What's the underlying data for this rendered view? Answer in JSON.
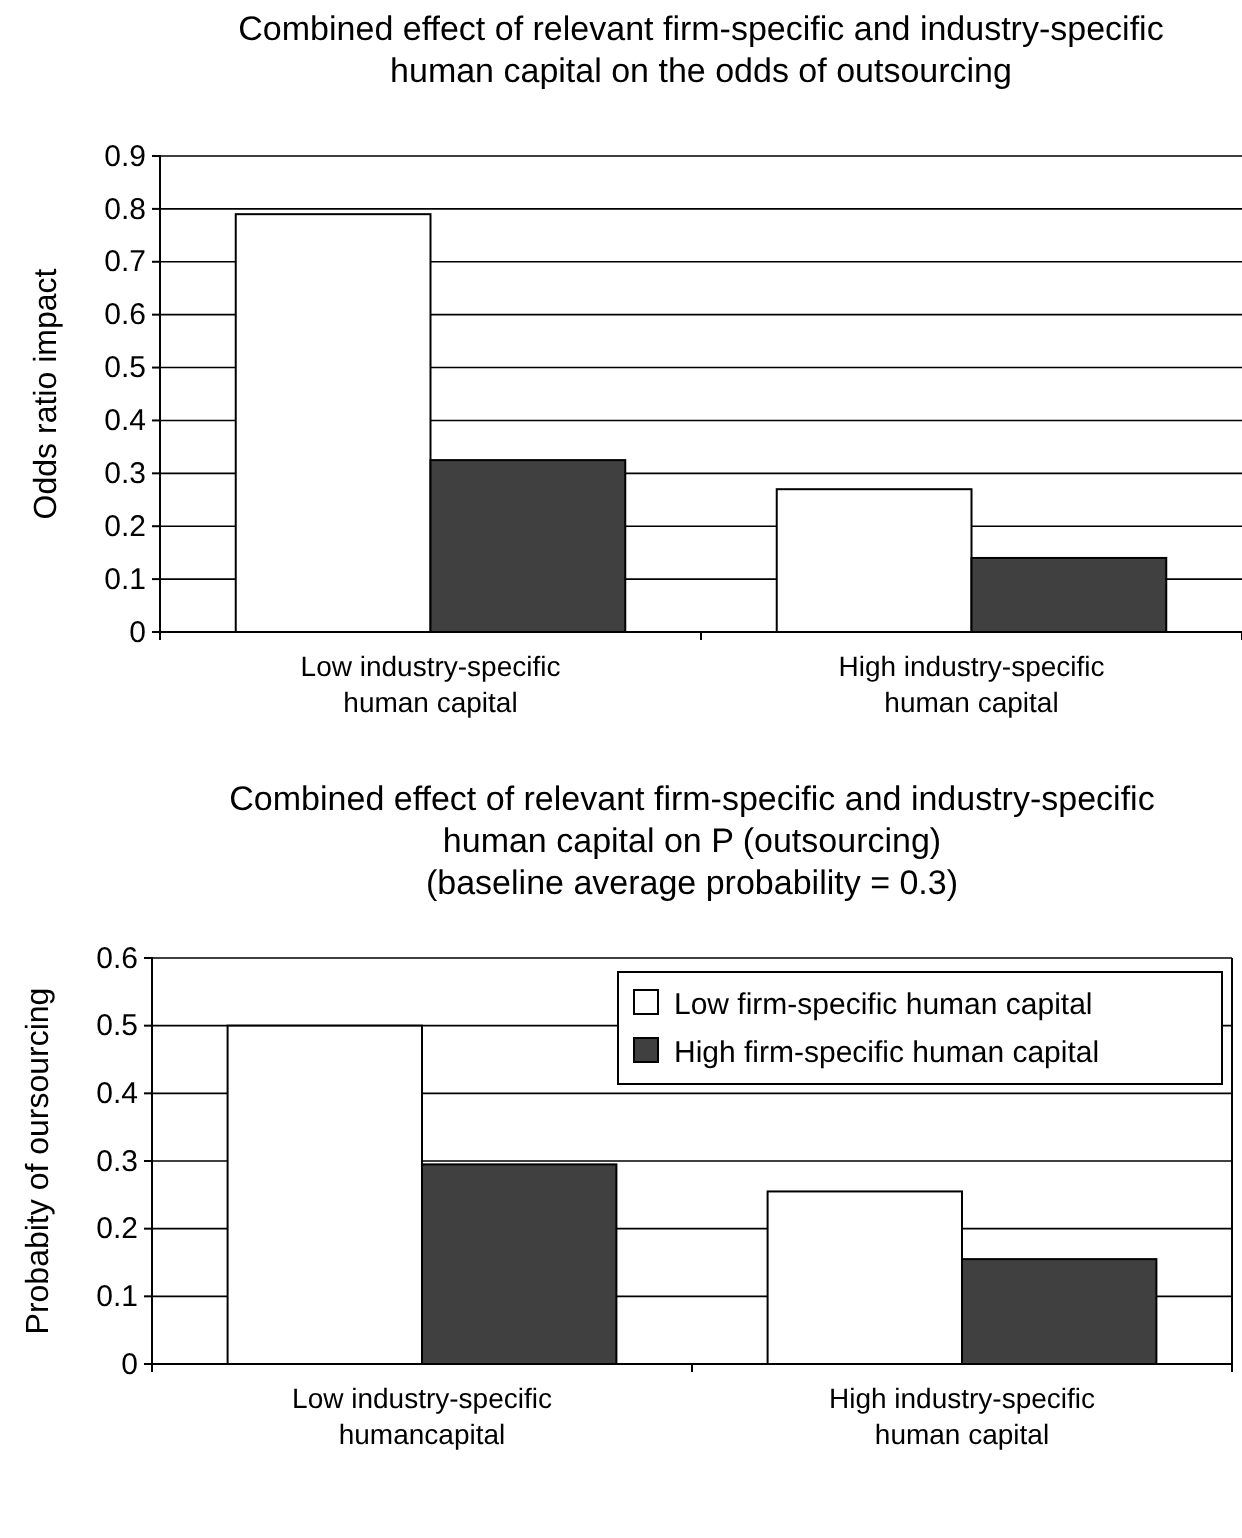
{
  "chart_data": [
    {
      "type": "bar",
      "title": "Combined effect of relevant firm-specific and industry-specific human capital on the odds of outsourcing",
      "ylabel": "Odds ratio impact",
      "categories": [
        "Low industry-specific human capital",
        "High industry-specific human capital"
      ],
      "series": [
        {
          "color": "#ffffff",
          "values": [
            0.79,
            0.27
          ]
        },
        {
          "color": "#404040",
          "values": [
            0.325,
            0.14
          ]
        }
      ],
      "ylim": [
        0,
        0.9
      ],
      "yticks": [
        0,
        0.1,
        0.2,
        0.3,
        0.4,
        0.5,
        0.6,
        0.7,
        0.8,
        0.9
      ],
      "grid": "y",
      "legend": false
    },
    {
      "type": "bar",
      "title": "Combined effect of relevant firm-specific and industry-specific human capital on P (outsourcing)",
      "subtitle": "(baseline average probability = 0.3)",
      "ylabel": "Probabity of oursourcing",
      "categories": [
        "Low industry-specific humancapital",
        "High industry-specific human capital"
      ],
      "series": [
        {
          "name": "Low firm-specific human capital",
          "color": "#ffffff",
          "values": [
            0.5,
            0.255
          ]
        },
        {
          "name": "High firm-specific human capital",
          "color": "#404040",
          "values": [
            0.295,
            0.155
          ]
        }
      ],
      "ylim": [
        0,
        0.6
      ],
      "yticks": [
        0,
        0.1,
        0.2,
        0.3,
        0.4,
        0.5,
        0.6
      ],
      "grid": "y",
      "legend": "top right"
    }
  ]
}
